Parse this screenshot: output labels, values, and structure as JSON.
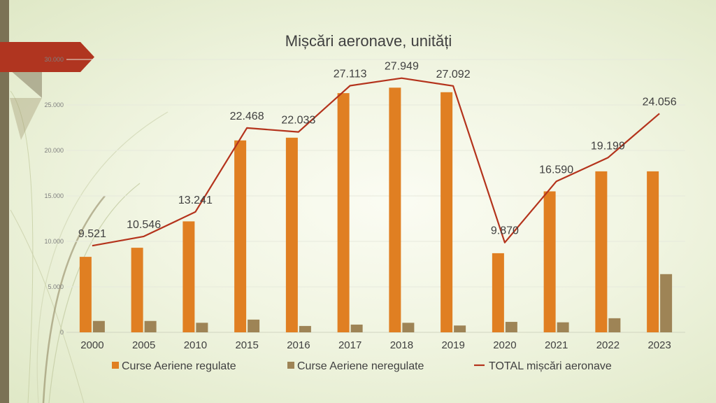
{
  "colors": {
    "regular": "#e07f22",
    "irregular": "#9e8456",
    "total": "#b4331c",
    "accent_tab": "#b03520",
    "stripe": "#7b7255"
  },
  "chart_data": {
    "type": "bar",
    "title": "Mișcări aeronave, unități",
    "xlabel": "",
    "ylabel": "",
    "ylim": [
      0,
      30000
    ],
    "y_ticks": [
      "0",
      "5.000",
      "10.000",
      "15.000",
      "20.000",
      "25.000",
      "30.000"
    ],
    "grid": true,
    "legend_position": "bottom",
    "categories": [
      "2000",
      "2005",
      "2010",
      "2015",
      "2016",
      "2017",
      "2018",
      "2019",
      "2020",
      "2021",
      "2022",
      "2023"
    ],
    "series": [
      {
        "name": "Curse Aeriene regulate",
        "type": "bar",
        "values": [
          8300,
          9300,
          12200,
          21100,
          21400,
          26300,
          26900,
          26400,
          8700,
          15500,
          17700,
          17700
        ]
      },
      {
        "name": "Curse Aeriene neregulate",
        "type": "bar",
        "values": [
          1250,
          1250,
          1050,
          1400,
          700,
          850,
          1050,
          750,
          1150,
          1100,
          1550,
          6400
        ]
      },
      {
        "name": "TOTAL mișcări aeronave",
        "type": "line",
        "values": [
          9521,
          10546,
          13241,
          22468,
          22033,
          27113,
          27949,
          27092,
          9870,
          16590,
          19199,
          24056
        ],
        "data_labels": [
          "9.521",
          "10.546",
          "13.241",
          "22.468",
          "22.033",
          "27.113",
          "27.949",
          "27.092",
          "9.870",
          "16.590",
          "19.199",
          "24.056"
        ]
      }
    ]
  }
}
